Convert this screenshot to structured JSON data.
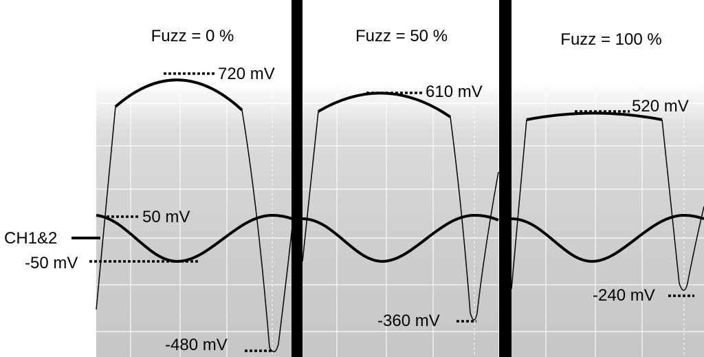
{
  "channel_label": "CH1&2",
  "chart_data": [
    {
      "type": "line",
      "title": "Fuzz = 0 %",
      "series": [
        {
          "y_peak_mV": 720,
          "y_trough_mV": -480
        },
        {
          "y_peak_mV": 50,
          "y_trough_mV": -50
        }
      ],
      "annotations": [
        "720 mV",
        "50 mV",
        "-50 mV",
        "-480 mV"
      ]
    },
    {
      "type": "line",
      "title": "Fuzz = 50 %",
      "series": [
        {
          "y_peak_mV": 610,
          "y_trough_mV": -360
        },
        {
          "y_peak_mV": 50,
          "y_trough_mV": -50
        }
      ],
      "annotations": [
        "610 mV",
        "-360 mV"
      ]
    },
    {
      "type": "line",
      "title": "Fuzz = 100 %",
      "series": [
        {
          "y_peak_mV": 520,
          "y_trough_mV": -240
        },
        {
          "y_peak_mV": 50,
          "y_trough_mV": -50
        }
      ],
      "annotations": [
        "520 mV",
        "-240 mV"
      ]
    }
  ]
}
